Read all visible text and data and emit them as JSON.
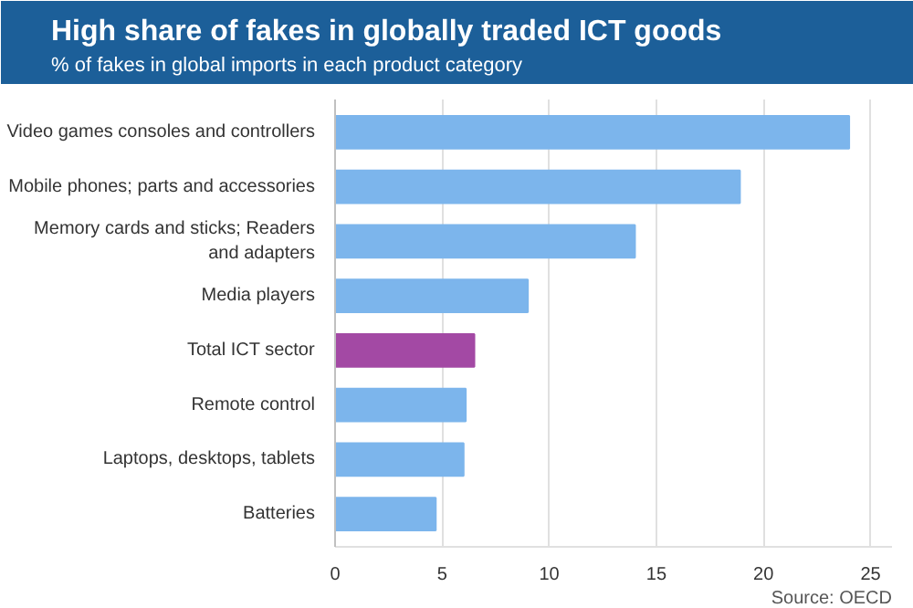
{
  "chart_data": {
    "type": "bar",
    "orientation": "horizontal",
    "title": "High share of fakes in globally traded ICT goods",
    "subtitle": "% of fakes in global imports in each product category",
    "categories": [
      "Video games consoles and controllers",
      "Mobile phones; parts and accessories",
      "Memory cards and sticks; Readers\nand adapters",
      "Media players",
      "Total ICT sector",
      "Remote control",
      "Laptops, desktops, tablets",
      "Batteries"
    ],
    "values": [
      24.0,
      18.9,
      14.0,
      9.0,
      6.5,
      6.1,
      6.0,
      4.7
    ],
    "colors": [
      "#7cb5ec",
      "#7cb5ec",
      "#7cb5ec",
      "#7cb5ec",
      "#a349a4",
      "#7cb5ec",
      "#7cb5ec",
      "#7cb5ec"
    ],
    "xlim": [
      0,
      26
    ],
    "xticks": [
      0,
      5,
      10,
      15,
      20,
      25
    ],
    "grid": "x",
    "annotations": [
      "Source: OECD"
    ]
  }
}
